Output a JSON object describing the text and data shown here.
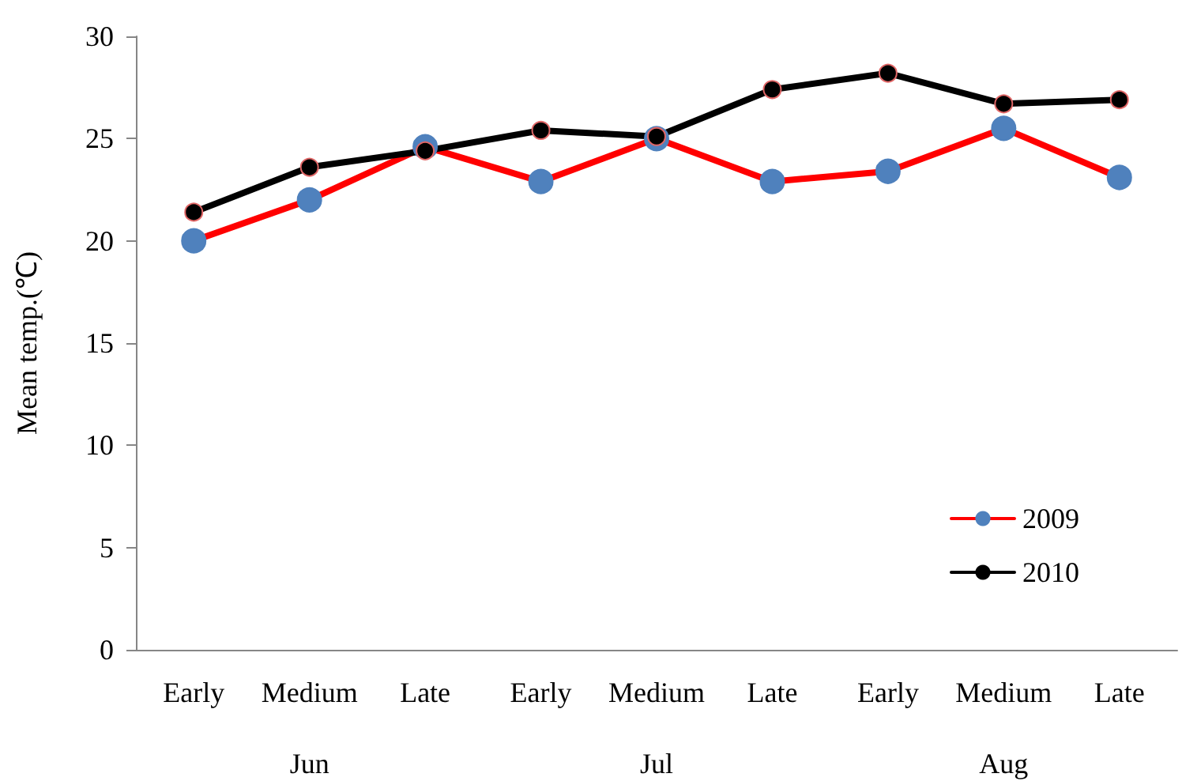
{
  "chart_data": {
    "type": "line",
    "ylabel": "Mean temp.(℃)",
    "categories": [
      "Early",
      "Medium",
      "Late",
      "Early",
      "Medium",
      "Late",
      "Early",
      "Medium",
      "Late"
    ],
    "annotations": [
      "Jun",
      "Jul",
      "Aug"
    ],
    "series": [
      {
        "name": "2009",
        "color": "#ff0000",
        "colors": [
          "#4f81bd",
          "#4f81bd",
          "#4f81bd",
          "#4f81bd",
          "#4f81bd",
          "#4f81bd",
          "#4f81bd",
          "#4f81bd",
          "#4f81bd"
        ],
        "values": [
          20.0,
          22.0,
          24.6,
          22.9,
          25.0,
          22.9,
          23.4,
          25.5,
          23.1
        ]
      },
      {
        "name": "2010",
        "color": "#000000",
        "colors": [
          "#000000",
          "#000000",
          "#000000",
          "#000000",
          "#000000",
          "#000000",
          "#000000",
          "#000000",
          "#000000"
        ],
        "values": [
          21.4,
          23.6,
          24.4,
          25.4,
          25.1,
          27.4,
          28.2,
          26.7,
          26.9
        ]
      }
    ],
    "ylim": [
      0,
      30
    ],
    "yticks": [
      0,
      5,
      10,
      15,
      20,
      25,
      30
    ],
    "grid": false,
    "legend": "bottom right",
    "marker": "circle",
    "line_style": "solid"
  }
}
